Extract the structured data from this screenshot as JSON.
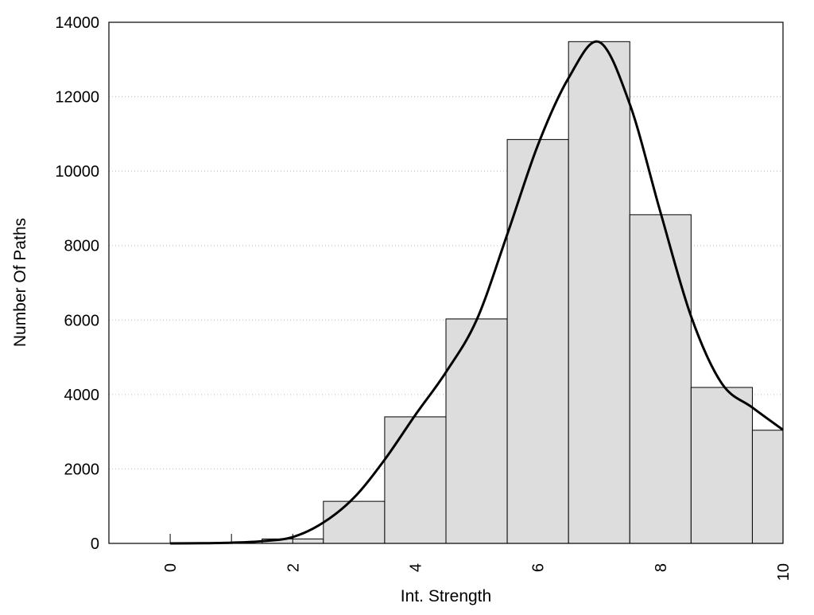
{
  "chart_data": {
    "type": "bar",
    "title": "",
    "xlabel": "Int. Strength",
    "ylabel": "Number Of Paths",
    "xlim": [
      -1,
      10
    ],
    "ylim": [
      0,
      14000
    ],
    "xticks": [
      0,
      2,
      4,
      6,
      8,
      10
    ],
    "minor_xticks": [
      0,
      1,
      2
    ],
    "yticks": [
      0,
      2000,
      4000,
      6000,
      8000,
      10000,
      12000,
      14000
    ],
    "grid": "horizontal dotted",
    "bar_color": "#dddddd",
    "bars": {
      "x": [
        0,
        1,
        2,
        3,
        4,
        5,
        6,
        7,
        8,
        9,
        10
      ],
      "values": [
        0,
        0,
        120,
        1130,
        3400,
        6030,
        10850,
        13480,
        8830,
        4190,
        3040
      ],
      "width": 1
    },
    "density_curve": {
      "x": [
        0,
        0.5,
        1,
        1.5,
        2,
        2.5,
        3,
        3.5,
        4,
        4.5,
        5,
        5.5,
        6,
        6.5,
        7,
        7.5,
        8,
        8.5,
        9,
        9.5,
        10
      ],
      "y": [
        0,
        5,
        20,
        60,
        170,
        560,
        1230,
        2250,
        3450,
        4600,
        6000,
        8300,
        10700,
        12500,
        13470,
        11800,
        8900,
        6100,
        4300,
        3650,
        3050
      ]
    }
  }
}
